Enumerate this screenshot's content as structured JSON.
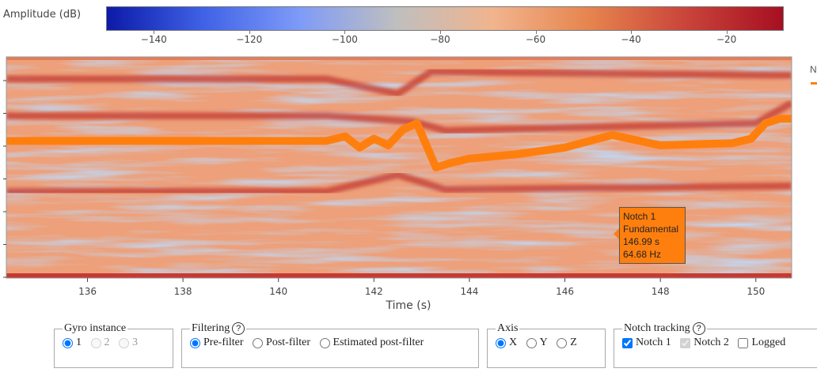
{
  "colorbar": {
    "label": "Amplitude (dB)",
    "min": -150,
    "max": -8,
    "ticks": [
      "−140",
      "−120",
      "−100",
      "−80",
      "−60",
      "−40",
      "−20"
    ],
    "tick_values": [
      -140,
      -120,
      -100,
      -80,
      -60,
      -40,
      -20
    ],
    "colorscale": [
      "#0c1aa8",
      "#3f62e6",
      "#7f9bf8",
      "#bfbfbf",
      "#f1b48d",
      "#e6844e",
      "#c9443a",
      "#a60f21"
    ]
  },
  "chart_data": {
    "type": "heatmap",
    "xlabel": "Time (s)",
    "xlim": [
      134.3,
      150.75
    ],
    "x_ticks": [
      "136",
      "138",
      "140",
      "142",
      "144",
      "146",
      "148",
      "150"
    ],
    "x_tick_values": [
      136,
      138,
      140,
      142,
      144,
      146,
      148,
      150
    ],
    "ylim": [
      0,
      100
    ],
    "harmonic_bands_hz": [
      {
        "x": [
          134.3,
          141.0,
          142.5,
          143.2,
          150.75
        ],
        "y": [
          108,
          108,
          100,
          112,
          110
        ]
      },
      {
        "x": [
          134.3,
          141.0,
          142.8,
          143.5,
          150.0,
          150.75
        ],
        "y": [
          88,
          88,
          85,
          80,
          84,
          95
        ]
      },
      {
        "x": [
          134.3,
          141.0,
          142.5,
          143.5,
          150.75
        ],
        "y": [
          47,
          47,
          56,
          48,
          50
        ]
      },
      {
        "x": [
          134.3,
          150.75
        ],
        "y": [
          20,
          20
        ]
      }
    ],
    "series": [
      {
        "name": "Notch 1 Fundamental",
        "color": "#ff7f0e",
        "x": [
          134.3,
          141.0,
          141.4,
          141.7,
          142.0,
          142.3,
          142.6,
          142.9,
          143.1,
          143.3,
          143.6,
          144.0,
          145.0,
          146.0,
          146.99,
          148.0,
          149.5,
          149.9,
          150.2,
          150.5,
          150.75
        ],
        "y": [
          62,
          62,
          64,
          59,
          63,
          60,
          67,
          70,
          60,
          50,
          52,
          54,
          56,
          59,
          64.68,
          60,
          61,
          63,
          70,
          72,
          72
        ]
      }
    ]
  },
  "tooltip": {
    "line1": "Notch 1",
    "line2": "Fundamental",
    "line3": "146.99 s",
    "line4": "64.68 Hz"
  },
  "legend_stub": {
    "text": "N"
  },
  "controls": {
    "gyro": {
      "legend": "Gyro instance",
      "options": [
        "1",
        "2",
        "3"
      ],
      "selected": "1"
    },
    "filtering": {
      "legend": "Filtering",
      "help": "?",
      "options": [
        "Pre-filter",
        "Post-filter",
        "Estimated post-filter"
      ],
      "selected": "Pre-filter"
    },
    "axis": {
      "legend": "Axis",
      "options": [
        "X",
        "Y",
        "Z"
      ],
      "selected": "X"
    },
    "notch": {
      "legend": "Notch tracking",
      "help": "?",
      "options": [
        "Notch 1",
        "Notch 2",
        "Logged"
      ],
      "checked": [
        true,
        true,
        false
      ],
      "disabled": [
        false,
        true,
        false
      ]
    }
  }
}
